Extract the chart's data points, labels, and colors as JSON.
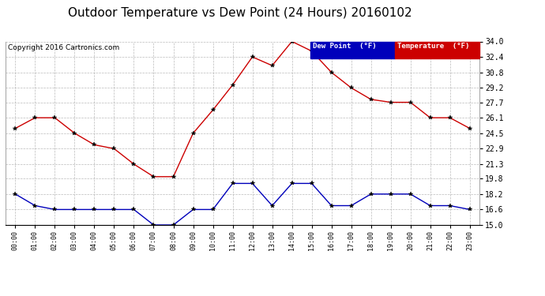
{
  "title": "Outdoor Temperature vs Dew Point (24 Hours) 20160102",
  "copyright": "Copyright 2016 Cartronics.com",
  "x_labels": [
    "00:00",
    "01:00",
    "02:00",
    "03:00",
    "04:00",
    "05:00",
    "06:00",
    "07:00",
    "08:00",
    "09:00",
    "10:00",
    "11:00",
    "12:00",
    "13:00",
    "14:00",
    "15:00",
    "16:00",
    "17:00",
    "18:00",
    "19:00",
    "20:00",
    "21:00",
    "22:00",
    "23:00"
  ],
  "temperature": [
    25.0,
    26.1,
    26.1,
    24.5,
    23.3,
    22.9,
    21.3,
    20.0,
    20.0,
    24.5,
    26.9,
    29.5,
    32.4,
    31.5,
    34.0,
    33.0,
    30.8,
    29.2,
    28.0,
    27.7,
    27.7,
    26.1,
    26.1,
    25.0
  ],
  "dew_point": [
    18.2,
    17.0,
    16.6,
    16.6,
    16.6,
    16.6,
    16.6,
    15.0,
    15.0,
    16.6,
    16.6,
    19.3,
    19.3,
    17.0,
    19.3,
    19.3,
    17.0,
    17.0,
    18.2,
    18.2,
    18.2,
    17.0,
    17.0,
    16.6
  ],
  "temp_color": "#cc0000",
  "dew_color": "#0000bb",
  "ylim_min": 15.0,
  "ylim_max": 34.0,
  "yticks": [
    15.0,
    16.6,
    18.2,
    19.8,
    21.3,
    22.9,
    24.5,
    26.1,
    27.7,
    29.2,
    30.8,
    32.4,
    34.0
  ],
  "bg_color": "#ffffff",
  "grid_color": "#aaaaaa",
  "legend_dew_label": "Dew Point  (°F)",
  "legend_temp_label": "Temperature  (°F)",
  "title_fontsize": 11,
  "copyright_fontsize": 6.5
}
